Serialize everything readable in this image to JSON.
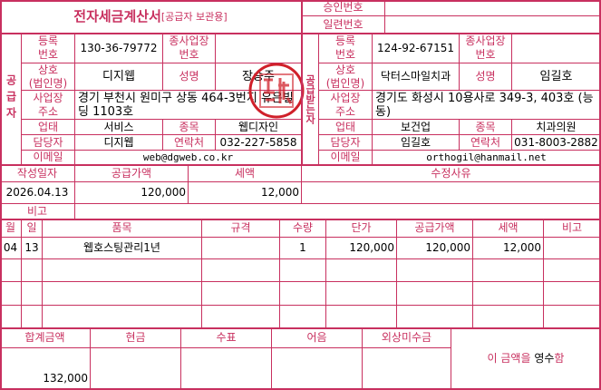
{
  "title": "전자세금계산서",
  "subtitle": "[공급자 보관용]",
  "approval_label": "승인번호",
  "approval_value": "",
  "serial_label": "일련번호",
  "serial_value": "",
  "labels": {
    "reg_no": "등록\n번호",
    "sub_no": "종사업장\n번호",
    "company": "상호\n(법인명)",
    "name": "성명",
    "address": "사업장\n주소",
    "biz_type": "업태",
    "item": "종목",
    "contact": "담당자",
    "phone": "연락처",
    "email": "이메일"
  },
  "supplier": {
    "side_label": "공급자",
    "reg_no": "130-36-79772",
    "sub_no": "",
    "company": "디지웹",
    "name": "장승주",
    "address": "경기 부천시 원미구 상동 464-3번지 유은빌딩 1103호",
    "biz_type": "서비스",
    "item": "웹디자인",
    "contact": "디지웹",
    "phone": "032-227-5858",
    "email": "web@dgweb.co.kr"
  },
  "buyer": {
    "side_label": "공급받는자",
    "reg_no": "124-92-67151",
    "sub_no": "",
    "company": "닥터스마일치과",
    "name": "임길호",
    "address": "경기도 화성시 10용사로 349-3, 403호 (능동)",
    "biz_type": "보건업",
    "item": "치과의원",
    "contact": "임길호",
    "phone": "031-8003-2882",
    "email": "orthogil@hanmail.net"
  },
  "summary": {
    "date_label": "작성일자",
    "supply_label": "공급가액",
    "tax_label": "세액",
    "reason_label": "수정사유",
    "date": "2026.04.13",
    "supply": "120,000",
    "tax": "12,000",
    "reason": "",
    "note_label": "비고",
    "note": ""
  },
  "items": {
    "headers": [
      "월",
      "일",
      "품목",
      "규격",
      "수량",
      "단가",
      "공급가액",
      "세액",
      "비고"
    ],
    "rows": [
      [
        "04",
        "13",
        "웹호스팅관리1년",
        "",
        "1",
        "120,000",
        "120,000",
        "12,000",
        ""
      ],
      [
        "",
        "",
        "",
        "",
        "",
        "",
        "",
        "",
        ""
      ],
      [
        "",
        "",
        "",
        "",
        "",
        "",
        "",
        "",
        ""
      ],
      [
        "",
        "",
        "",
        "",
        "",
        "",
        "",
        "",
        ""
      ]
    ]
  },
  "totals": {
    "headers": [
      "합계금액",
      "현금",
      "수표",
      "어음",
      "외상미수금"
    ],
    "values": [
      "132,000",
      "",
      "",
      "",
      ""
    ],
    "receipt_prefix": "이 금액을",
    "receipt_word": "영수",
    "receipt_suffix": "함"
  },
  "colors": {
    "line": "#c8305f",
    "stamp": "#d0202a"
  }
}
